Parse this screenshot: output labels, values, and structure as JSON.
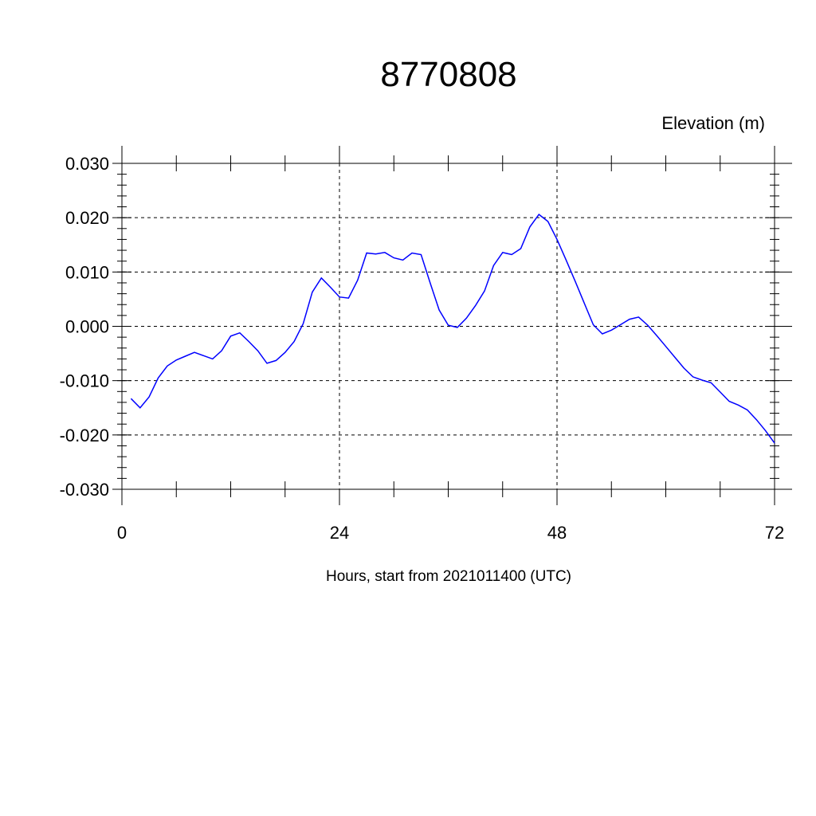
{
  "chart_data": {
    "type": "line",
    "title": "8770808",
    "units_label": "Elevation (m)",
    "xlabel": "Hours, start from 2021011400 (UTC)",
    "ylabel": "",
    "xlim": [
      0,
      72
    ],
    "ylim": [
      -0.03,
      0.03
    ],
    "xticks": [
      0,
      24,
      48,
      72
    ],
    "xtick_labels": [
      "0",
      "24",
      "48",
      "72"
    ],
    "yticks": [
      0.03,
      0.02,
      0.01,
      0.0,
      -0.01,
      -0.02,
      -0.03
    ],
    "ytick_labels": [
      "0.030",
      "0.020",
      "0.010",
      "0.000",
      "-0.010",
      "-0.020",
      "-0.030"
    ],
    "grid": true,
    "line_color": "#0000ff",
    "series": [
      {
        "x": [
          1,
          2,
          3,
          4,
          5,
          6,
          7,
          8,
          9,
          10,
          11,
          12,
          13,
          14,
          15,
          16,
          17,
          18,
          19,
          20,
          21,
          22,
          23,
          24,
          25,
          26,
          27,
          28,
          29,
          30,
          31,
          32,
          33,
          34,
          35,
          36,
          37,
          38,
          39,
          40,
          41,
          42,
          43,
          44,
          45,
          46,
          47,
          48,
          49,
          50,
          51,
          52,
          53,
          54,
          55,
          56,
          57,
          58,
          59,
          60,
          61,
          62,
          63,
          64,
          65,
          66,
          67,
          68,
          69,
          70,
          71,
          72
        ],
        "y": [
          -0.0133,
          -0.015,
          -0.013,
          -0.0095,
          -0.0073,
          -0.0062,
          -0.0055,
          -0.0048,
          -0.0054,
          -0.006,
          -0.0045,
          -0.0018,
          -0.0012,
          -0.0028,
          -0.0045,
          -0.0068,
          -0.0063,
          -0.0048,
          -0.0028,
          0.0005,
          0.0063,
          0.0089,
          0.0072,
          0.0054,
          0.0052,
          0.0085,
          0.0135,
          0.0133,
          0.0136,
          0.0126,
          0.0122,
          0.0135,
          0.0132,
          0.008,
          0.003,
          0.0002,
          -0.0002,
          0.0015,
          0.0038,
          0.0065,
          0.0112,
          0.0136,
          0.0132,
          0.0143,
          0.0183,
          0.0206,
          0.0193,
          0.016,
          0.0122,
          0.0083,
          0.0043,
          0.0003,
          -0.0014,
          -0.0007,
          0.0003,
          0.0013,
          0.0017,
          0.0002,
          -0.0017,
          -0.0037,
          -0.0057,
          -0.0077,
          -0.0093,
          -0.0099,
          -0.0104,
          -0.0121,
          -0.0138,
          -0.0145,
          -0.0154,
          -0.0172,
          -0.0192,
          -0.0215
        ]
      }
    ]
  }
}
